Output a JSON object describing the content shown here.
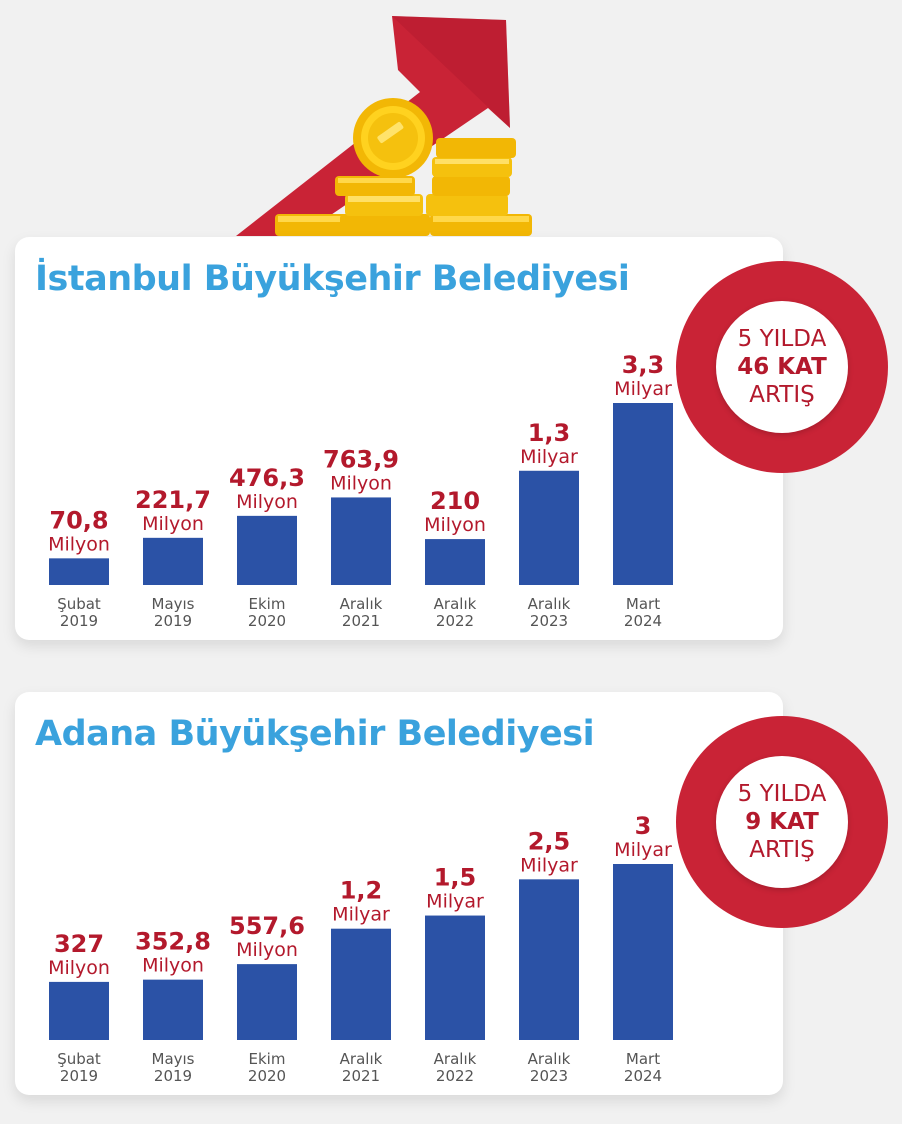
{
  "chart_data": [
    {
      "type": "bar",
      "title": "İstanbul Büyükşehir Belediyesi",
      "categories": [
        [
          "Şubat",
          "2019"
        ],
        [
          "Mayıs",
          "2019"
        ],
        [
          "Ekim",
          "2020"
        ],
        [
          "Aralık",
          "2021"
        ],
        [
          "Aralık",
          "2022"
        ],
        [
          "Aralık",
          "2023"
        ],
        [
          "Mart",
          "2024"
        ]
      ],
      "values": [
        70.8,
        221.7,
        476.3,
        763.9,
        210,
        1300,
        3300
      ],
      "value_labels": [
        [
          "70,8",
          "Milyon"
        ],
        [
          "221,7",
          "Milyon"
        ],
        [
          "476,3",
          "Milyon"
        ],
        [
          "763,9",
          "Milyon"
        ],
        [
          "210",
          "Milyon"
        ],
        [
          "1,3",
          "Milyar"
        ],
        [
          "3,3",
          "Milyar"
        ]
      ],
      "unit": "Milyon",
      "bar_color": "#2b52a6",
      "label_color": "#b3192c",
      "badge": {
        "line1": "5 YILDA",
        "line2": "46 KAT",
        "line3": "ARTIŞ"
      }
    },
    {
      "type": "bar",
      "title": "Adana Büyükşehir Belediyesi",
      "categories": [
        [
          "Şubat",
          "2019"
        ],
        [
          "Mayıs",
          "2019"
        ],
        [
          "Ekim",
          "2020"
        ],
        [
          "Aralık",
          "2021"
        ],
        [
          "Aralık",
          "2022"
        ],
        [
          "Aralık",
          "2023"
        ],
        [
          "Mart",
          "2024"
        ]
      ],
      "values": [
        327,
        352.8,
        557.6,
        1200,
        1500,
        2500,
        3000
      ],
      "value_labels": [
        [
          "327",
          "Milyon"
        ],
        [
          "352,8",
          "Milyon"
        ],
        [
          "557,6",
          "Milyon"
        ],
        [
          "1,2",
          "Milyar"
        ],
        [
          "1,5",
          "Milyar"
        ],
        [
          "2,5",
          "Milyar"
        ],
        [
          "3",
          "Milyar"
        ]
      ],
      "unit": "Milyon",
      "bar_color": "#2b52a6",
      "label_color": "#b3192c",
      "badge": {
        "line1": "5 YILDA",
        "line2": "9 KAT",
        "line3": "ARTIŞ"
      }
    }
  ],
  "colors": {
    "accent_red": "#c92336",
    "title_blue": "#3aa2dd",
    "bar_blue": "#2b52a6",
    "coin_gold": "#f5c518"
  },
  "icons": {
    "arrow": "growth-arrow-icon",
    "coins": "coin-stack-icon"
  }
}
